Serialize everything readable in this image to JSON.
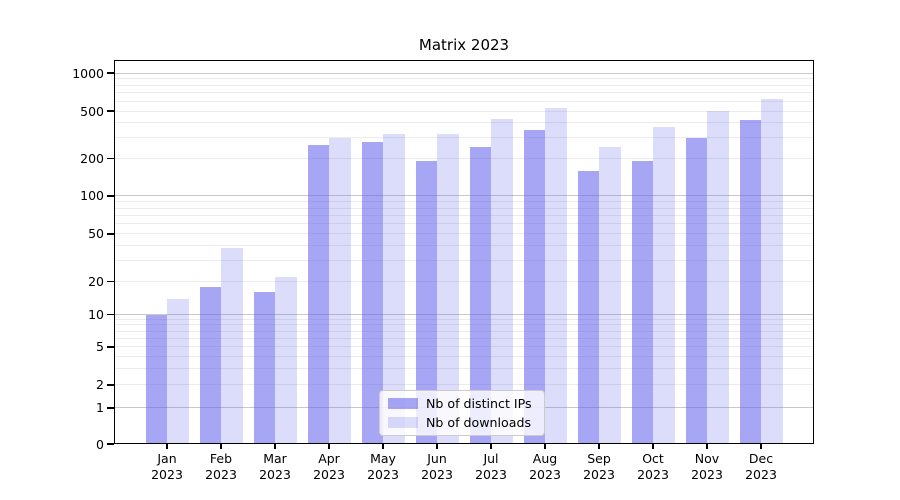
{
  "chart_data": {
    "type": "bar",
    "title": "Matrix 2023",
    "xlabel": "",
    "ylabel": "",
    "year": "2023",
    "categories": [
      "Jan",
      "Feb",
      "Mar",
      "Apr",
      "May",
      "Jun",
      "Jul",
      "Aug",
      "Sep",
      "Oct",
      "Nov",
      "Dec"
    ],
    "series": [
      {
        "name": "Nb of distinct IPs",
        "color": "rgba(97,97,235,0.56)",
        "values": [
          10,
          18,
          16,
          260,
          275,
          190,
          250,
          350,
          160,
          190,
          300,
          420
        ]
      },
      {
        "name": "Nb of downloads",
        "color": "rgba(97,97,235,0.22)",
        "values": [
          14,
          38,
          22,
          300,
          320,
          320,
          430,
          530,
          250,
          370,
          500,
          620
        ]
      }
    ],
    "y_scale": "symlog",
    "y_ticks": [
      0,
      1,
      2,
      5,
      10,
      20,
      50,
      100,
      200,
      500,
      1000
    ],
    "ylim": [
      0,
      1200
    ],
    "grid": true,
    "legend_position": "lower center",
    "colors": {
      "major_grid": "#c9c9c9",
      "minor_grid": "#ebebeb",
      "axis": "#000000",
      "text": "#000000"
    }
  }
}
